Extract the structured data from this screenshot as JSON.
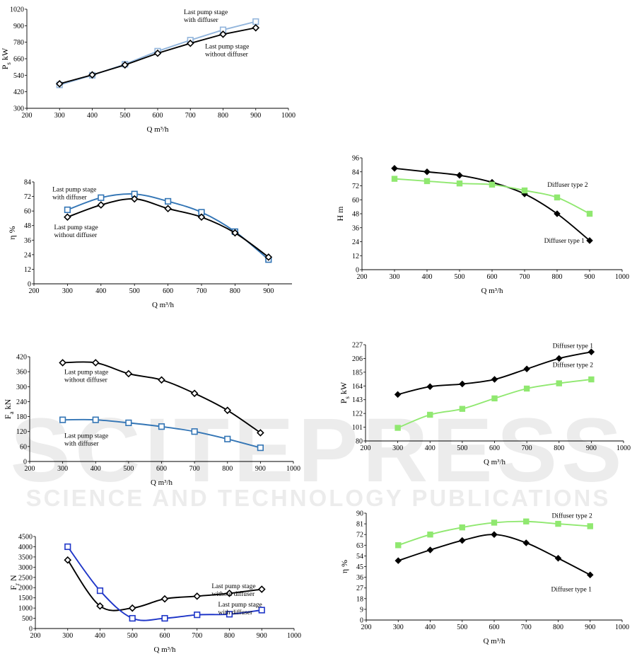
{
  "watermark": {
    "main": "SCITEPRESS",
    "sub": "SCIENCE AND TECHNOLOGY PUBLICATIONS"
  },
  "chart_data": [
    {
      "id": "ps_left",
      "type": "line",
      "ylabel": "Ps kW",
      "ylabel_main": "P",
      "ylabel_sub": "s",
      "ylabel_rest": " kW",
      "xlabel": "Q m³/h",
      "xlim": [
        200,
        1000
      ],
      "xticks": [
        200,
        300,
        400,
        500,
        600,
        700,
        800,
        900,
        1000
      ],
      "ylim": [
        300,
        1020
      ],
      "yticks": [
        300,
        420,
        540,
        660,
        780,
        900,
        1020
      ],
      "series": [
        {
          "name": "Last pump stage with diffuser",
          "marker": "square-open",
          "color": "#92b5dc",
          "smooth": false,
          "x": [
            300,
            400,
            500,
            600,
            700,
            800,
            900
          ],
          "y": [
            470,
            540,
            620,
            715,
            795,
            870,
            930
          ]
        },
        {
          "name": "Last pump stage without diffuser",
          "marker": "diamond-open",
          "color": "#000000",
          "smooth": false,
          "x": [
            300,
            400,
            500,
            600,
            700,
            800,
            900
          ],
          "y": [
            478,
            543,
            615,
            700,
            772,
            838,
            885
          ]
        }
      ],
      "annotations": [
        {
          "lines": [
            "Last pump stage",
            "with diffuser"
          ],
          "x": 680,
          "y": 985,
          "anchor": "start"
        },
        {
          "lines": [
            "Last pump stage",
            "without diffuser"
          ],
          "x": 745,
          "y": 735,
          "anchor": "start"
        }
      ]
    },
    {
      "id": "eta_left",
      "type": "line",
      "ylabel": "η %",
      "xlabel": "Q m³/h",
      "xlim": [
        200,
        970
      ],
      "xticks": [
        200,
        300,
        400,
        500,
        600,
        700,
        800,
        900
      ],
      "ylim": [
        0,
        84
      ],
      "yticks": [
        0,
        12,
        24,
        36,
        48,
        60,
        72,
        84
      ],
      "series": [
        {
          "name": "Last pump stage with diffuser",
          "marker": "square-open",
          "color": "#3375b5",
          "smooth": true,
          "x": [
            300,
            400,
            500,
            600,
            700,
            800,
            900
          ],
          "y": [
            61,
            71,
            74,
            68,
            59,
            43,
            20
          ]
        },
        {
          "name": "Last pump stage without diffuser",
          "marker": "diamond-open",
          "color": "#000000",
          "smooth": true,
          "x": [
            300,
            400,
            500,
            600,
            700,
            800,
            900
          ],
          "y": [
            55,
            65,
            70,
            62,
            55,
            42,
            22
          ]
        }
      ],
      "annotations": [
        {
          "lines": [
            "Last pump stage",
            "with diffuser"
          ],
          "x": 255,
          "y": 76,
          "anchor": "start"
        },
        {
          "lines": [
            "Last pump stage",
            "without diffuser"
          ],
          "x": 260,
          "y": 45,
          "anchor": "start"
        }
      ]
    },
    {
      "id": "fa_left",
      "type": "line",
      "ylabel": "Fa kN",
      "ylabel_main": "F",
      "ylabel_sub": "a",
      "ylabel_rest": " kN",
      "xlabel": "Q m³/h",
      "xlim": [
        200,
        1000
      ],
      "xticks": [
        200,
        300,
        400,
        500,
        600,
        700,
        800,
        900,
        1000
      ],
      "ylim": [
        0,
        420
      ],
      "yticks": [
        0,
        60,
        120,
        180,
        240,
        300,
        360,
        420
      ],
      "series": [
        {
          "name": "Last pump stage without diffuser",
          "marker": "diamond-open",
          "color": "#000000",
          "smooth": true,
          "x": [
            300,
            400,
            500,
            600,
            700,
            800,
            900
          ],
          "y": [
            396,
            396,
            352,
            327,
            273,
            205,
            115
          ]
        },
        {
          "name": "Last pump stage with diffuser",
          "marker": "square-open",
          "color": "#3375b5",
          "smooth": true,
          "x": [
            300,
            400,
            500,
            600,
            700,
            800,
            900
          ],
          "y": [
            167,
            167,
            155,
            140,
            120,
            90,
            55
          ]
        }
      ],
      "annotations": [
        {
          "lines": [
            "Last pump stage",
            "without diffuser"
          ],
          "x": 305,
          "y": 350,
          "anchor": "start"
        },
        {
          "lines": [
            "Last pump stage",
            "with diffuser"
          ],
          "x": 305,
          "y": 95,
          "anchor": "start"
        }
      ]
    },
    {
      "id": "fr_left",
      "type": "line",
      "ylabel": "Fr N",
      "ylabel_main": "F",
      "ylabel_sub": "r",
      "ylabel_rest": " N",
      "xlabel": "Q m³/h",
      "xlim": [
        200,
        1000
      ],
      "xticks": [
        200,
        300,
        400,
        500,
        600,
        700,
        800,
        900,
        1000
      ],
      "ylim": [
        0,
        4500
      ],
      "yticks": [
        0,
        500,
        1000,
        1500,
        2000,
        2500,
        3000,
        3500,
        4000,
        4500
      ],
      "series": [
        {
          "name": "Last pump stage without diffuser",
          "marker": "diamond-open",
          "color": "#000000",
          "smooth": true,
          "x": [
            300,
            400,
            500,
            600,
            700,
            800,
            900
          ],
          "y": [
            3350,
            1100,
            1000,
            1450,
            1580,
            1720,
            1920
          ]
        },
        {
          "name": "Last pump stage with diffuser",
          "marker": "square-open",
          "color": "#1f36c8",
          "smooth": true,
          "x": [
            300,
            400,
            500,
            600,
            700,
            800,
            900
          ],
          "y": [
            4000,
            1850,
            500,
            500,
            670,
            700,
            900
          ]
        }
      ],
      "annotations": [
        {
          "lines": [
            "Last pump stage",
            "without diffuser"
          ],
          "x": 745,
          "y": 1980,
          "anchor": "start"
        },
        {
          "lines": [
            "Last pump stage",
            "with diffuser"
          ],
          "x": 765,
          "y": 1070,
          "anchor": "start"
        }
      ]
    },
    {
      "id": "h_right",
      "type": "line",
      "ylabel": "H m",
      "xlabel": "Q m³/h",
      "xlim": [
        200,
        1000
      ],
      "xticks": [
        200,
        300,
        400,
        500,
        600,
        700,
        800,
        900,
        1000
      ],
      "ylim": [
        0,
        96
      ],
      "yticks": [
        0,
        12,
        24,
        36,
        48,
        60,
        72,
        84,
        96
      ],
      "series": [
        {
          "name": "Diffuser type 1",
          "marker": "diamond-filled",
          "color": "#000000",
          "smooth": true,
          "x": [
            300,
            400,
            500,
            600,
            700,
            800,
            900
          ],
          "y": [
            87,
            84,
            81,
            75,
            65,
            48,
            25
          ]
        },
        {
          "name": "Diffuser type 2",
          "marker": "square-filled",
          "color": "#90e870",
          "smooth": true,
          "x": [
            300,
            400,
            500,
            600,
            700,
            800,
            900
          ],
          "y": [
            78,
            76,
            74,
            73,
            68,
            62,
            48
          ]
        }
      ],
      "annotations": [
        {
          "lines": [
            "Diffuser type 2"
          ],
          "x": 770,
          "y": 71,
          "anchor": "start"
        },
        {
          "lines": [
            "Diffuser type 1"
          ],
          "x": 760,
          "y": 23,
          "anchor": "start"
        }
      ]
    },
    {
      "id": "ps_right",
      "type": "line",
      "ylabel": "Ps kW",
      "ylabel_main": "P",
      "ylabel_sub": "s",
      "ylabel_rest": " kW",
      "xlabel": "Q m³/h",
      "xlim": [
        200,
        1000
      ],
      "xticks": [
        200,
        300,
        400,
        500,
        600,
        700,
        800,
        900,
        1000
      ],
      "ylim": [
        80,
        227
      ],
      "yticks": [
        80,
        101,
        122,
        143,
        164,
        185,
        206,
        227
      ],
      "series": [
        {
          "name": "Diffuser type 1",
          "marker": "diamond-filled",
          "color": "#000000",
          "smooth": true,
          "x": [
            300,
            400,
            500,
            600,
            700,
            800,
            900
          ],
          "y": [
            151,
            163,
            167,
            174,
            190,
            206,
            216
          ]
        },
        {
          "name": "Diffuser type 2",
          "marker": "square-filled",
          "color": "#90e870",
          "smooth": true,
          "x": [
            300,
            400,
            500,
            600,
            700,
            800,
            900
          ],
          "y": [
            100,
            120,
            129,
            145,
            160,
            168,
            174
          ]
        }
      ],
      "annotations": [
        {
          "lines": [
            "Diffuser type 1"
          ],
          "x": 780,
          "y": 222,
          "anchor": "start"
        },
        {
          "lines": [
            "Diffuser type 2"
          ],
          "x": 780,
          "y": 193,
          "anchor": "start"
        }
      ]
    },
    {
      "id": "eta_right",
      "type": "line",
      "ylabel": "η %",
      "xlabel": "Q m³/h",
      "xlim": [
        200,
        1000
      ],
      "xticks": [
        200,
        300,
        400,
        500,
        600,
        700,
        800,
        900,
        1000
      ],
      "ylim": [
        0,
        90
      ],
      "yticks": [
        0,
        9,
        18,
        27,
        36,
        45,
        54,
        63,
        72,
        81,
        90
      ],
      "series": [
        {
          "name": "Diffuser type 2",
          "marker": "square-filled",
          "color": "#90e870",
          "smooth": true,
          "x": [
            300,
            400,
            500,
            600,
            700,
            800,
            900
          ],
          "y": [
            63,
            72,
            78,
            82,
            83,
            81,
            79
          ]
        },
        {
          "name": "Diffuser type 1",
          "marker": "diamond-filled",
          "color": "#000000",
          "smooth": true,
          "x": [
            300,
            400,
            500,
            600,
            700,
            800,
            900
          ],
          "y": [
            50,
            59,
            67,
            72,
            65,
            52,
            38
          ]
        }
      ],
      "annotations": [
        {
          "lines": [
            "Diffuser type 2"
          ],
          "x": 780,
          "y": 86,
          "anchor": "start"
        },
        {
          "lines": [
            "Diffuser type 1"
          ],
          "x": 778,
          "y": 24,
          "anchor": "start"
        }
      ]
    }
  ]
}
